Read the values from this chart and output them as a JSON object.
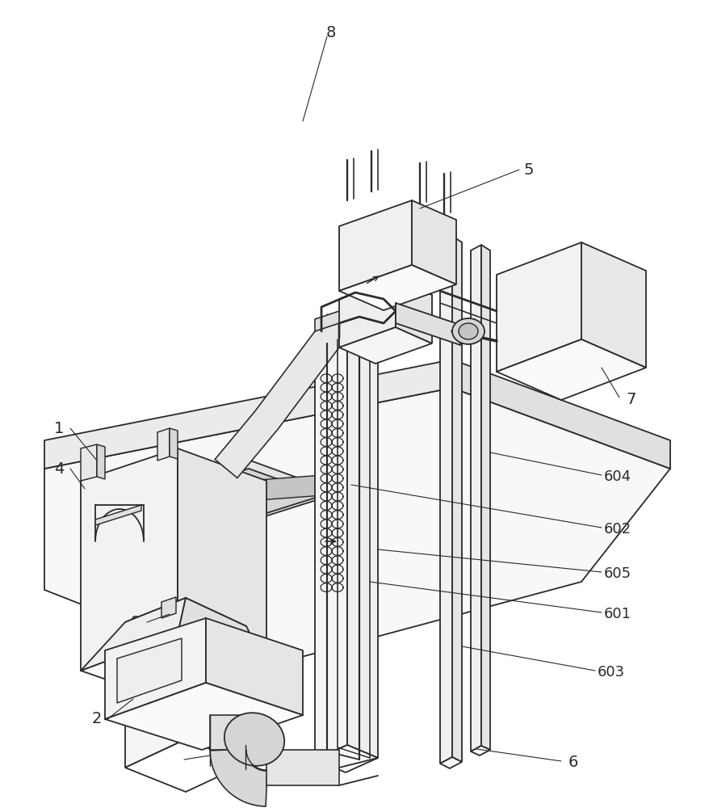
{
  "bg_color": "#ffffff",
  "line_color": "#2a2a2a",
  "lw": 1.3,
  "tlw": 0.8,
  "fs": 14,
  "fs_small": 13,
  "fill_light": "#f5f5f5",
  "fill_mid": "#ebebeb",
  "fill_dark": "#d8d8d8",
  "fill_white": "#ffffff"
}
